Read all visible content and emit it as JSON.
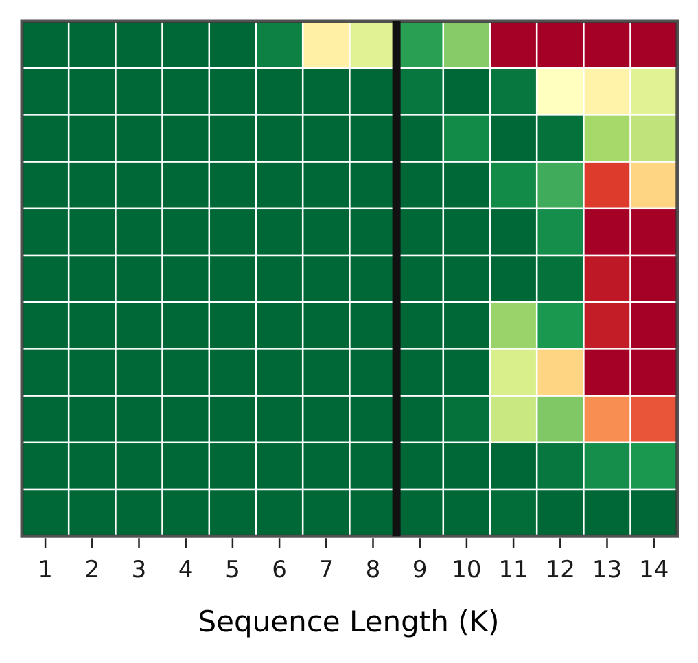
{
  "chart_data": {
    "type": "heatmap",
    "xlabel": "Sequence Length (K)",
    "x": [
      "1",
      "2",
      "3",
      "4",
      "5",
      "6",
      "7",
      "8",
      "9",
      "10",
      "11",
      "12",
      "13",
      "14"
    ],
    "rows": 11,
    "colorscale": "RdYlGn",
    "value_range": [
      0,
      1
    ],
    "divider_after_column": 8,
    "grid": true,
    "values": [
      [
        1.0,
        1.0,
        1.0,
        1.0,
        1.0,
        0.95,
        0.45,
        0.58,
        0.88,
        0.75,
        0.0,
        0.0,
        0.0,
        0.0
      ],
      [
        1.0,
        1.0,
        1.0,
        1.0,
        1.0,
        1.0,
        1.0,
        1.0,
        0.97,
        1.0,
        0.97,
        0.5,
        0.46,
        0.58
      ],
      [
        1.0,
        1.0,
        1.0,
        1.0,
        1.0,
        1.0,
        1.0,
        1.0,
        1.0,
        0.93,
        1.0,
        0.98,
        0.7,
        0.65
      ],
      [
        1.0,
        1.0,
        1.0,
        1.0,
        1.0,
        1.0,
        1.0,
        1.0,
        1.0,
        1.0,
        0.93,
        0.85,
        0.12,
        0.38
      ],
      [
        1.0,
        1.0,
        1.0,
        1.0,
        1.0,
        1.0,
        1.0,
        1.0,
        1.0,
        1.0,
        1.0,
        0.92,
        0.0,
        0.0
      ],
      [
        1.0,
        1.0,
        1.0,
        1.0,
        1.0,
        1.0,
        1.0,
        1.0,
        1.0,
        1.0,
        1.0,
        0.98,
        0.05,
        0.0
      ],
      [
        1.0,
        1.0,
        1.0,
        1.0,
        1.0,
        1.0,
        1.0,
        1.0,
        1.0,
        1.0,
        0.72,
        0.9,
        0.06,
        0.0
      ],
      [
        1.0,
        1.0,
        1.0,
        1.0,
        1.0,
        1.0,
        1.0,
        1.0,
        1.0,
        1.0,
        0.6,
        0.38,
        0.0,
        0.0
      ],
      [
        1.0,
        1.0,
        1.0,
        1.0,
        1.0,
        1.0,
        1.0,
        1.0,
        1.0,
        0.98,
        0.63,
        0.76,
        0.25,
        0.16
      ],
      [
        1.0,
        1.0,
        1.0,
        1.0,
        1.0,
        1.0,
        1.0,
        1.0,
        1.0,
        1.0,
        1.0,
        0.97,
        0.92,
        0.9
      ],
      [
        1.0,
        1.0,
        1.0,
        1.0,
        1.0,
        1.0,
        1.0,
        1.0,
        1.0,
        1.0,
        0.99,
        1.0,
        1.0,
        1.0
      ]
    ]
  }
}
